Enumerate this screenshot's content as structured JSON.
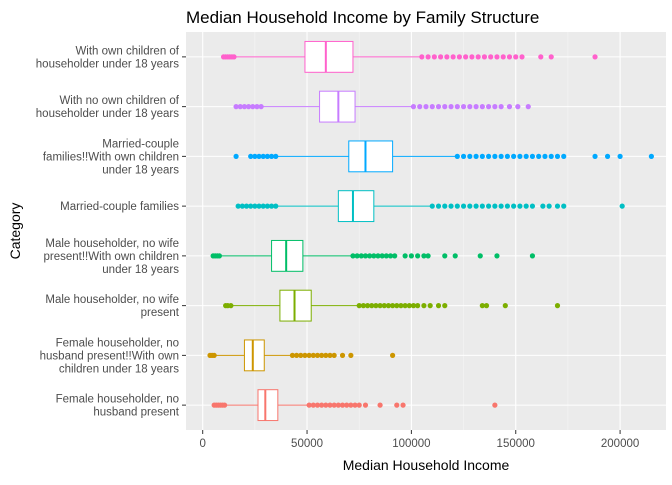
{
  "chart_data": {
    "type": "boxplot",
    "orientation": "horizontal",
    "title": "Median Household Income by Family Structure",
    "xlabel": "Median Household Income",
    "ylabel": "Category",
    "xlim": [
      -8000,
      222000
    ],
    "x_ticks": [
      0,
      50000,
      100000,
      150000,
      200000
    ],
    "x_tick_labels": [
      "0",
      "50000",
      "100000",
      "150000",
      "200000"
    ],
    "grid": true,
    "legend": "none",
    "categories": [
      {
        "label": [
          "Female householder, no",
          "husband present"
        ],
        "color": "#F8766D",
        "whisker_low": 6000,
        "q1": 26500,
        "median": 30000,
        "q3": 36000,
        "whisker_high": 50000,
        "outliers_low": [
          5500,
          6500,
          7500,
          8500,
          9500,
          10500
        ],
        "outliers_high": [
          51000,
          53000,
          55000,
          57000,
          59000,
          61000,
          63000,
          65000,
          67000,
          69000,
          71000,
          73000,
          75000,
          78000,
          85000,
          93000,
          96000,
          140000
        ]
      },
      {
        "label": [
          "Female householder, no",
          "husband present!!With own",
          "children under 18 years"
        ],
        "color": "#CD9600",
        "whisker_low": 6000,
        "q1": 20000,
        "median": 24000,
        "q3": 29500,
        "whisker_high": 42000,
        "outliers_low": [
          3500,
          4500,
          5500
        ],
        "outliers_high": [
          43000,
          45000,
          47000,
          49000,
          51000,
          53000,
          55000,
          57000,
          59000,
          61000,
          63000,
          67000,
          71000,
          91000
        ]
      },
      {
        "label": [
          "Male householder, no wife",
          "present"
        ],
        "color": "#7CAE00",
        "whisker_low": 13000,
        "q1": 37000,
        "median": 44000,
        "q3": 52000,
        "whisker_high": 74000,
        "outliers_low": [
          11000,
          12000,
          13500
        ],
        "outliers_high": [
          75000,
          77000,
          79000,
          81000,
          83000,
          85000,
          87000,
          89000,
          91000,
          93000,
          95000,
          97000,
          99000,
          101000,
          103000,
          106000,
          109000,
          113000,
          116000,
          134000,
          136000,
          145000,
          170000
        ]
      },
      {
        "label": [
          "Male householder, no wife",
          "present!!With own children",
          "under 18 years"
        ],
        "color": "#00BE67",
        "whisker_low": 8000,
        "q1": 33000,
        "median": 40000,
        "q3": 48000,
        "whisker_high": 71000,
        "outliers_low": [
          5000,
          6000,
          7000,
          8000
        ],
        "outliers_high": [
          72000,
          74000,
          76000,
          78000,
          80000,
          82000,
          84000,
          86000,
          88000,
          90000,
          92000,
          97000,
          100000,
          103000,
          106000,
          108000,
          116000,
          121000,
          133000,
          141000,
          158000
        ]
      },
      {
        "label": [
          "Married-couple families"
        ],
        "color": "#00BFC4",
        "whisker_low": 36000,
        "q1": 65000,
        "median": 72000,
        "q3": 82000,
        "whisker_high": 109000,
        "outliers_low": [
          17000,
          19000,
          21000,
          23000,
          25000,
          27000,
          29000,
          31000,
          33000,
          35000
        ],
        "outliers_high": [
          110000,
          113000,
          116000,
          119000,
          122000,
          125000,
          128000,
          131000,
          134000,
          137000,
          140000,
          143000,
          146000,
          149000,
          152000,
          155000,
          158000,
          163000,
          166000,
          170000,
          173000,
          201000
        ]
      },
      {
        "label": [
          "Married-couple",
          "families!!With own children",
          "under 18 years"
        ],
        "color": "#00A9FF",
        "whisker_low": 35000,
        "q1": 70000,
        "median": 78000,
        "q3": 91000,
        "whisker_high": 121000,
        "outliers_low": [
          16000,
          23000,
          25000,
          27000,
          29000,
          31000,
          33000,
          35000
        ],
        "outliers_high": [
          122000,
          125000,
          128000,
          131000,
          134000,
          137000,
          140000,
          143000,
          146000,
          149000,
          152000,
          155000,
          158000,
          161000,
          164000,
          167000,
          170000,
          173000,
          188000,
          194000,
          200000,
          215000
        ]
      },
      {
        "label": [
          "With no own children of",
          "householder under 18 years"
        ],
        "color": "#C77CFF",
        "whisker_low": 29000,
        "q1": 56000,
        "median": 65000,
        "q3": 73000,
        "whisker_high": 100000,
        "outliers_low": [
          16000,
          18000,
          20000,
          22000,
          24000,
          26000,
          28000
        ],
        "outliers_high": [
          101000,
          104000,
          107000,
          110000,
          113000,
          116000,
          119000,
          122000,
          125000,
          128000,
          131000,
          134000,
          137000,
          140000,
          143000,
          147000,
          151000,
          156000
        ]
      },
      {
        "label": [
          "With own children of",
          "householder under 18 years"
        ],
        "color": "#FF61CC",
        "whisker_low": 15000,
        "q1": 49000,
        "median": 59000,
        "q3": 72000,
        "whisker_high": 104000,
        "outliers_low": [
          10000,
          11000,
          12000,
          13000,
          14000,
          15000
        ],
        "outliers_high": [
          105000,
          108000,
          111000,
          114000,
          117000,
          120000,
          123000,
          126000,
          129000,
          132000,
          135000,
          138000,
          141000,
          144000,
          147000,
          150000,
          153000,
          162000,
          167000,
          188000
        ]
      }
    ]
  }
}
